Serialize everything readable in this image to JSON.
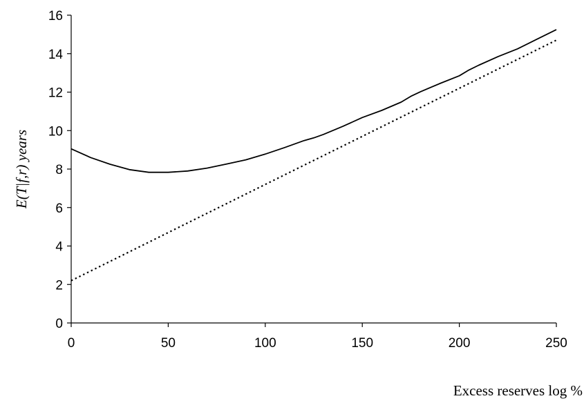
{
  "chart_data": {
    "type": "line",
    "title": "",
    "xlabel": "Excess reserves log %",
    "ylabel": "E(T|f,r) years",
    "xlim": [
      0,
      250
    ],
    "ylim": [
      0,
      16
    ],
    "x_ticks": [
      0,
      50,
      100,
      150,
      200,
      250
    ],
    "y_ticks": [
      0,
      2,
      4,
      6,
      8,
      10,
      12,
      14,
      16
    ],
    "grid": false,
    "legend": "none",
    "series": [
      {
        "style": "solid",
        "color": "#000000",
        "x": [
          0,
          10,
          20,
          30,
          40,
          50,
          60,
          70,
          80,
          90,
          100,
          110,
          120,
          125,
          130,
          140,
          150,
          160,
          170,
          175,
          180,
          190,
          200,
          205,
          210,
          220,
          230,
          240,
          250
        ],
        "y": [
          9.05,
          8.6,
          8.25,
          7.97,
          7.83,
          7.83,
          7.9,
          8.05,
          8.26,
          8.48,
          8.78,
          9.12,
          9.48,
          9.62,
          9.8,
          10.22,
          10.68,
          11.05,
          11.48,
          11.78,
          12.02,
          12.45,
          12.85,
          13.15,
          13.4,
          13.85,
          14.25,
          14.75,
          15.25
        ]
      },
      {
        "style": "dotted",
        "color": "#000000",
        "x": [
          0,
          50,
          100,
          150,
          200,
          250
        ],
        "y": [
          2.2,
          4.7,
          7.2,
          9.7,
          12.2,
          14.7
        ]
      }
    ]
  }
}
